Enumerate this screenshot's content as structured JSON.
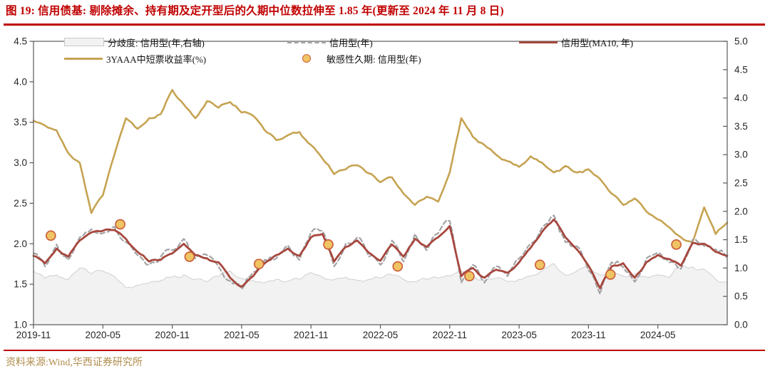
{
  "title": "图 19: 信用债基: 剔除摊余、持有期及定开型后的久期中位数拉伸至 1.85 年(更新至 2024 年 11 月 8 日)",
  "source": "资料来源:Wind,华西证券研究所",
  "colors": {
    "title_red": "#C00000",
    "rule_red": "#C00000",
    "gold_line": "#C6A352",
    "ma10_red": "#A6473E",
    "credit_gray": "#A3A3A3",
    "area_fill": "#F2F2F2",
    "area_edge": "#CFCFCF",
    "dot_fill": "#EFC464",
    "dot_ring": "#CC5F3B",
    "axis": "#595959",
    "tick_text": "#262626",
    "source_gold": "#B08D4D"
  },
  "legend": {
    "position": "top-inside",
    "items": [
      {
        "label": "分歧度: 信用型(年,右轴)",
        "swatch": "area"
      },
      {
        "label": "信用型(年)",
        "swatch": "dashed-line"
      },
      {
        "label": "信用型(MA10, 年)",
        "swatch": "red-line"
      },
      {
        "label": "3YAAA中短票收益率(%)",
        "swatch": "gold-line"
      },
      {
        "label": "敏感性久期: 信用型(年)",
        "swatch": "dot"
      }
    ]
  },
  "chart_data": {
    "type": "line",
    "x_start": "2019-11",
    "x_end": "2024-11",
    "x_interval": "monthly",
    "points_per_series": 61,
    "x_tick_labels": [
      "2019-11",
      "2020-05",
      "2020-11",
      "2021-05",
      "2021-11",
      "2022-05",
      "2022-11",
      "2023-05",
      "2023-11",
      "2024-05"
    ],
    "x_tick_indices": [
      0,
      6,
      12,
      18,
      24,
      30,
      36,
      42,
      48,
      54
    ],
    "left_axis": {
      "min": 1.0,
      "max": 4.5,
      "tick_labels": [
        "4.5",
        "4.0",
        "3.5",
        "3.0",
        "2.5",
        "2.0",
        "1.5",
        "1.0"
      ]
    },
    "right_axis": {
      "min": 0.0,
      "max": 5.0,
      "tick_labels": [
        "5.0",
        "4.5",
        "4.0",
        "3.5",
        "3.0",
        "2.5",
        "2.0",
        "1.5",
        "1.0",
        "0.5",
        "0.0"
      ]
    },
    "grid": false,
    "series": [
      {
        "name": "分歧度: 信用型(年,右轴)",
        "type": "area",
        "axis": "right",
        "fill": "#F2F2F2",
        "stroke": "#CFCFCF",
        "values": [
          0.95,
          0.82,
          0.88,
          0.8,
          1.0,
          0.9,
          0.95,
          0.85,
          0.65,
          0.7,
          0.74,
          0.78,
          0.85,
          0.88,
          0.8,
          0.76,
          0.85,
          0.95,
          0.82,
          0.78,
          0.74,
          0.8,
          0.77,
          0.8,
          0.92,
          0.84,
          0.8,
          0.84,
          0.78,
          0.8,
          0.82,
          0.88,
          0.8,
          0.76,
          0.8,
          0.82,
          0.86,
          0.95,
          0.84,
          0.78,
          0.82,
          0.76,
          0.8,
          0.86,
          0.95,
          1.08,
          0.88,
          0.95,
          1.02,
          0.88,
          0.92,
          0.86,
          0.9,
          0.84,
          0.88,
          0.84,
          1.05,
          1.02,
          0.98,
          0.8,
          0.74
        ]
      },
      {
        "name": "3YAAA中短票收益率(%)",
        "type": "line",
        "axis": "left",
        "color": "#C6A352",
        "width": 2.6,
        "values": [
          3.52,
          3.46,
          3.4,
          3.12,
          3.0,
          2.38,
          2.6,
          3.1,
          3.55,
          3.42,
          3.55,
          3.6,
          3.9,
          3.72,
          3.55,
          3.76,
          3.68,
          3.75,
          3.62,
          3.58,
          3.4,
          3.28,
          3.34,
          3.38,
          3.22,
          3.05,
          2.86,
          2.92,
          2.97,
          2.87,
          2.76,
          2.82,
          2.62,
          2.48,
          2.58,
          2.52,
          2.88,
          3.55,
          3.32,
          3.22,
          3.1,
          3.02,
          2.95,
          3.08,
          3.0,
          2.88,
          2.96,
          2.88,
          2.92,
          2.8,
          2.62,
          2.48,
          2.56,
          2.4,
          2.3,
          2.2,
          2.08,
          2.02,
          2.45,
          2.12,
          2.26
        ]
      },
      {
        "name": "信用型(年)",
        "type": "line",
        "axis": "left",
        "color": "#A3A3A3",
        "width": 2.2,
        "dash": "6 4",
        "values": [
          1.88,
          1.72,
          1.99,
          1.8,
          2.08,
          2.18,
          2.13,
          2.21,
          2.02,
          1.86,
          1.74,
          1.84,
          1.92,
          2.06,
          1.82,
          1.86,
          1.72,
          1.54,
          1.44,
          1.65,
          1.8,
          1.82,
          1.98,
          1.8,
          2.14,
          2.16,
          1.72,
          2.0,
          2.08,
          1.84,
          1.74,
          2.04,
          1.78,
          2.12,
          1.92,
          2.13,
          2.28,
          1.52,
          1.74,
          1.52,
          1.72,
          1.6,
          1.82,
          2.0,
          2.2,
          2.35,
          2.02,
          1.97,
          1.67,
          1.38,
          1.77,
          1.71,
          1.53,
          1.82,
          1.89,
          1.77,
          1.69,
          2.05,
          1.97,
          1.93,
          1.82
        ]
      },
      {
        "name": "信用型(MA10, 年)",
        "type": "line",
        "axis": "left",
        "color": "#A6473E",
        "width": 2.8,
        "values": [
          1.85,
          1.76,
          1.94,
          1.84,
          2.04,
          2.14,
          2.16,
          2.17,
          2.06,
          1.9,
          1.78,
          1.8,
          1.88,
          2.0,
          1.86,
          1.82,
          1.77,
          1.58,
          1.47,
          1.6,
          1.76,
          1.86,
          1.94,
          1.85,
          2.08,
          2.12,
          1.78,
          1.96,
          2.04,
          1.89,
          1.79,
          1.99,
          1.84,
          2.06,
          1.96,
          2.08,
          2.22,
          1.6,
          1.7,
          1.58,
          1.68,
          1.64,
          1.77,
          1.95,
          2.15,
          2.3,
          2.08,
          1.93,
          1.73,
          1.45,
          1.72,
          1.76,
          1.58,
          1.77,
          1.86,
          1.81,
          1.73,
          2.01,
          2.0,
          1.9,
          1.85
        ]
      },
      {
        "name": "敏感性久期: 信用型(年)",
        "type": "scatter",
        "axis": "left",
        "fill": "#EFC464",
        "stroke": "#CC5F3B",
        "points": [
          [
            1.5,
            2.1
          ],
          [
            7.5,
            2.24
          ],
          [
            13.5,
            1.84
          ],
          [
            19.5,
            1.75
          ],
          [
            25.5,
            1.99
          ],
          [
            31.5,
            1.72
          ],
          [
            37.7,
            1.6
          ],
          [
            43.8,
            1.74
          ],
          [
            49.9,
            1.62
          ],
          [
            55.6,
            1.99
          ]
        ]
      }
    ]
  }
}
